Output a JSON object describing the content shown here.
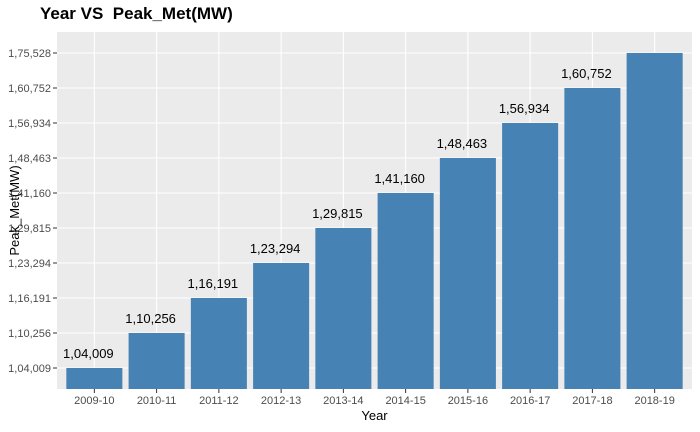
{
  "chart_data": {
    "type": "bar",
    "title": "Year VS  Peak_Met(MW)",
    "xlabel": "Year",
    "ylabel": "Peak_Met(MW)",
    "categories": [
      "2009-10",
      "2010-11",
      "2011-12",
      "2012-13",
      "2013-14",
      "2014-15",
      "2015-16",
      "2016-17",
      "2017-18",
      "2018-19"
    ],
    "values": [
      104009,
      110256,
      116191,
      123294,
      129815,
      141160,
      148463,
      156934,
      160752,
      175528
    ],
    "data_labels": [
      "1,04,009",
      "1,10,256",
      "1,16,191",
      "1,23,294",
      "1,29,815",
      "1,41,160",
      "1,48,463",
      "1,56,934",
      "1,60,752",
      ""
    ],
    "y_axis": "categorical ticks (discrete factor levels)",
    "y_ticks": [
      "1,04,009",
      "1,10,256",
      "1,16,191",
      "1,23,294",
      "1,29,815",
      "1,41,160",
      "1,48,463",
      "1,56,934",
      "1,60,752",
      "1,75,528"
    ],
    "bar_color": "#4682B4",
    "panel_color": "#EBEBEB",
    "grid": true,
    "legend": "none"
  }
}
